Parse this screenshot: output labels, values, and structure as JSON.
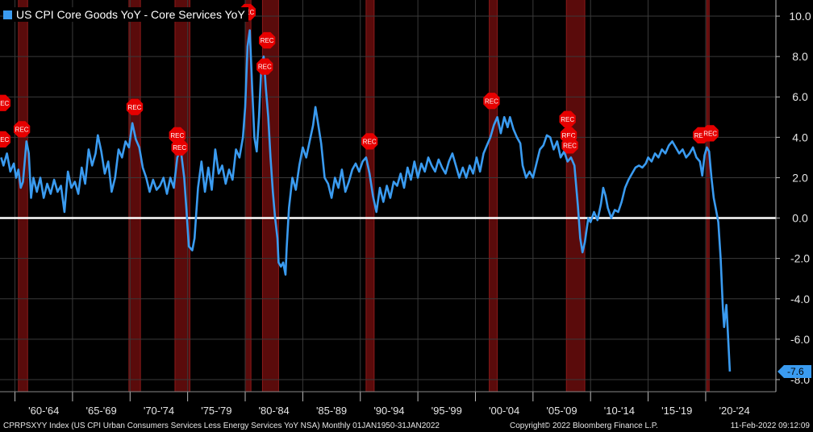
{
  "colors": {
    "background": "#000000",
    "series": "#3a9bf0",
    "recession_band": "#5a0b0b",
    "recession_edge": "#8c1a1a",
    "zero_line": "#ffffff",
    "rec_marker": "#e60000",
    "grid": "#3a3a3a"
  },
  "chart_data": {
    "type": "line",
    "title": "US CPI Core Goods YoY - Core Services YoY",
    "x_unit": "year",
    "xlim": [
      1958.7,
      2026.1
    ],
    "ylim": [
      -8.6,
      10.8
    ],
    "y_ticks": [
      10.0,
      8.0,
      6.0,
      4.0,
      2.0,
      0.0,
      -2.0,
      -4.0,
      -6.0,
      -8.0
    ],
    "y_tick_labels": [
      "10.0",
      "8.0",
      "6.0",
      "4.0",
      "2.0",
      "0.0",
      "-2.0",
      "-4.0",
      "-6.0",
      "-8.0"
    ],
    "x_tick_labels": [
      "'60-'64",
      "'65-'69",
      "'70-'74",
      "'75-'79",
      "'80-'84",
      "'85-'89",
      "'90-'94",
      "'95-'99",
      "'00-'04",
      "'05-'09",
      "'10-'14",
      "'15-'19",
      "'20-'24"
    ],
    "x_tick_ranges": [
      [
        1960,
        1965
      ],
      [
        1965,
        1970
      ],
      [
        1970,
        1975
      ],
      [
        1975,
        1980
      ],
      [
        1980,
        1985
      ],
      [
        1985,
        1990
      ],
      [
        1990,
        1995
      ],
      [
        1995,
        2000
      ],
      [
        2000,
        2005
      ],
      [
        2005,
        2010
      ],
      [
        2010,
        2015
      ],
      [
        2015,
        2020
      ],
      [
        2020,
        2025
      ]
    ],
    "zero_line": 0,
    "grid": true,
    "legend_position": "top-left",
    "last_value": -7.6,
    "last_value_label": "-7.6",
    "recessions": [
      [
        1960.3,
        1961.1
      ],
      [
        1969.9,
        1970.9
      ],
      [
        1973.9,
        1975.2
      ],
      [
        1980.0,
        1980.5
      ],
      [
        1981.5,
        1982.9
      ],
      [
        1990.5,
        1991.2
      ],
      [
        2001.2,
        2001.9
      ],
      [
        2007.9,
        2009.5
      ],
      [
        2020.1,
        2020.3
      ]
    ],
    "rec_markers": [
      {
        "label": "REC",
        "x": 1958.9,
        "y": 5.7
      },
      {
        "label": "REC",
        "x": 1958.9,
        "y": 3.9
      },
      {
        "label": "REC",
        "x": 1960.6,
        "y": 4.4
      },
      {
        "label": "REC",
        "x": 1970.4,
        "y": 5.5
      },
      {
        "label": "REC",
        "x": 1974.1,
        "y": 4.1
      },
      {
        "label": "REC",
        "x": 1974.3,
        "y": 3.5
      },
      {
        "label": "REC",
        "x": 1980.2,
        "y": 10.2
      },
      {
        "label": "REC",
        "x": 1981.9,
        "y": 8.8
      },
      {
        "label": "REC",
        "x": 1981.7,
        "y": 7.5
      },
      {
        "label": "REC",
        "x": 1990.8,
        "y": 3.8
      },
      {
        "label": "REC",
        "x": 2001.4,
        "y": 5.8
      },
      {
        "label": "REC",
        "x": 2008.0,
        "y": 4.9
      },
      {
        "label": "REC",
        "x": 2008.1,
        "y": 4.1
      },
      {
        "label": "REC",
        "x": 2008.2,
        "y": 3.6
      },
      {
        "label": "REC",
        "x": 2019.6,
        "y": 4.1
      },
      {
        "label": "REC",
        "x": 2020.4,
        "y": 4.2
      }
    ],
    "series": [
      {
        "values": [
          [
            1958.8,
            3.0
          ],
          [
            1959.0,
            2.6
          ],
          [
            1959.3,
            3.2
          ],
          [
            1959.6,
            2.3
          ],
          [
            1959.9,
            2.7
          ],
          [
            1960.1,
            2.0
          ],
          [
            1960.3,
            2.4
          ],
          [
            1960.5,
            1.5
          ],
          [
            1960.7,
            1.8
          ],
          [
            1961.0,
            3.8
          ],
          [
            1961.2,
            3.2
          ],
          [
            1961.4,
            1.0
          ],
          [
            1961.6,
            2.0
          ],
          [
            1961.9,
            1.3
          ],
          [
            1962.2,
            2.0
          ],
          [
            1962.5,
            1.0
          ],
          [
            1962.8,
            1.7
          ],
          [
            1963.1,
            1.2
          ],
          [
            1963.4,
            1.9
          ],
          [
            1963.7,
            1.3
          ],
          [
            1964.0,
            1.6
          ],
          [
            1964.3,
            0.3
          ],
          [
            1964.6,
            2.3
          ],
          [
            1964.9,
            1.5
          ],
          [
            1965.2,
            1.8
          ],
          [
            1965.5,
            1.2
          ],
          [
            1965.8,
            2.5
          ],
          [
            1966.1,
            1.7
          ],
          [
            1966.4,
            3.4
          ],
          [
            1966.7,
            2.6
          ],
          [
            1967.0,
            3.2
          ],
          [
            1967.2,
            4.1
          ],
          [
            1967.5,
            3.3
          ],
          [
            1967.8,
            2.2
          ],
          [
            1968.1,
            2.8
          ],
          [
            1968.4,
            1.3
          ],
          [
            1968.7,
            2.0
          ],
          [
            1969.0,
            3.4
          ],
          [
            1969.3,
            3.0
          ],
          [
            1969.6,
            3.8
          ],
          [
            1969.9,
            3.5
          ],
          [
            1970.2,
            4.7
          ],
          [
            1970.5,
            3.9
          ],
          [
            1970.8,
            3.5
          ],
          [
            1971.1,
            2.5
          ],
          [
            1971.4,
            2.0
          ],
          [
            1971.7,
            1.3
          ],
          [
            1972.0,
            1.9
          ],
          [
            1972.3,
            1.4
          ],
          [
            1972.6,
            1.6
          ],
          [
            1972.9,
            2.0
          ],
          [
            1973.2,
            1.2
          ],
          [
            1973.5,
            2.0
          ],
          [
            1973.8,
            1.5
          ],
          [
            1974.1,
            3.0
          ],
          [
            1974.4,
            3.4
          ],
          [
            1974.7,
            2.0
          ],
          [
            1974.9,
            0.4
          ],
          [
            1975.1,
            -1.4
          ],
          [
            1975.4,
            -1.6
          ],
          [
            1975.6,
            -1.0
          ],
          [
            1975.9,
            1.5
          ],
          [
            1976.2,
            2.8
          ],
          [
            1976.5,
            1.3
          ],
          [
            1976.8,
            2.5
          ],
          [
            1977.1,
            1.4
          ],
          [
            1977.4,
            3.4
          ],
          [
            1977.7,
            2.2
          ],
          [
            1978.0,
            2.6
          ],
          [
            1978.3,
            1.7
          ],
          [
            1978.6,
            2.4
          ],
          [
            1978.9,
            1.9
          ],
          [
            1979.2,
            3.4
          ],
          [
            1979.5,
            3.0
          ],
          [
            1979.8,
            4.0
          ],
          [
            1980.0,
            5.5
          ],
          [
            1980.2,
            8.5
          ],
          [
            1980.4,
            9.3
          ],
          [
            1980.6,
            6.5
          ],
          [
            1980.8,
            4.0
          ],
          [
            1981.0,
            3.3
          ],
          [
            1981.2,
            5.0
          ],
          [
            1981.4,
            7.5
          ],
          [
            1981.6,
            8.0
          ],
          [
            1981.8,
            6.4
          ],
          [
            1982.0,
            5.0
          ],
          [
            1982.2,
            3.0
          ],
          [
            1982.4,
            1.3
          ],
          [
            1982.6,
            0.0
          ],
          [
            1982.8,
            -1.0
          ],
          [
            1982.9,
            -2.2
          ],
          [
            1983.1,
            -2.4
          ],
          [
            1983.3,
            -2.2
          ],
          [
            1983.5,
            -2.8
          ],
          [
            1983.6,
            -1.5
          ],
          [
            1983.8,
            0.5
          ],
          [
            1984.1,
            2.0
          ],
          [
            1984.4,
            1.4
          ],
          [
            1984.7,
            2.6
          ],
          [
            1985.0,
            3.5
          ],
          [
            1985.3,
            3.0
          ],
          [
            1985.6,
            3.8
          ],
          [
            1985.9,
            4.6
          ],
          [
            1986.1,
            5.5
          ],
          [
            1986.3,
            4.8
          ],
          [
            1986.6,
            3.7
          ],
          [
            1986.9,
            2.0
          ],
          [
            1987.2,
            1.7
          ],
          [
            1987.5,
            1.0
          ],
          [
            1987.8,
            2.0
          ],
          [
            1988.1,
            1.5
          ],
          [
            1988.4,
            2.4
          ],
          [
            1988.7,
            1.3
          ],
          [
            1989.0,
            1.8
          ],
          [
            1989.3,
            2.4
          ],
          [
            1989.6,
            2.7
          ],
          [
            1989.9,
            2.3
          ],
          [
            1990.2,
            2.8
          ],
          [
            1990.5,
            3.0
          ],
          [
            1990.8,
            2.2
          ],
          [
            1991.1,
            1.1
          ],
          [
            1991.4,
            0.3
          ],
          [
            1991.7,
            1.5
          ],
          [
            1992.0,
            0.8
          ],
          [
            1992.3,
            1.6
          ],
          [
            1992.6,
            1.0
          ],
          [
            1992.9,
            1.8
          ],
          [
            1993.2,
            1.6
          ],
          [
            1993.5,
            2.2
          ],
          [
            1993.8,
            1.5
          ],
          [
            1994.1,
            2.5
          ],
          [
            1994.4,
            1.9
          ],
          [
            1994.7,
            2.8
          ],
          [
            1995.0,
            2.0
          ],
          [
            1995.3,
            2.7
          ],
          [
            1995.6,
            2.3
          ],
          [
            1995.9,
            3.0
          ],
          [
            1996.2,
            2.6
          ],
          [
            1996.5,
            2.3
          ],
          [
            1996.8,
            2.9
          ],
          [
            1997.1,
            2.5
          ],
          [
            1997.4,
            2.2
          ],
          [
            1997.7,
            2.8
          ],
          [
            1998.0,
            3.2
          ],
          [
            1998.3,
            2.6
          ],
          [
            1998.6,
            2.0
          ],
          [
            1998.9,
            2.5
          ],
          [
            1999.2,
            2.0
          ],
          [
            1999.5,
            2.6
          ],
          [
            1999.8,
            2.2
          ],
          [
            2000.1,
            3.0
          ],
          [
            2000.4,
            2.3
          ],
          [
            2000.7,
            3.2
          ],
          [
            2001.0,
            3.6
          ],
          [
            2001.3,
            4.0
          ],
          [
            2001.6,
            4.6
          ],
          [
            2001.9,
            5.0
          ],
          [
            2002.2,
            4.2
          ],
          [
            2002.5,
            5.0
          ],
          [
            2002.8,
            4.5
          ],
          [
            2003.0,
            5.0
          ],
          [
            2003.3,
            4.4
          ],
          [
            2003.6,
            4.0
          ],
          [
            2003.9,
            3.7
          ],
          [
            2004.1,
            2.6
          ],
          [
            2004.4,
            2.0
          ],
          [
            2004.7,
            2.3
          ],
          [
            2005.0,
            2.0
          ],
          [
            2005.3,
            2.7
          ],
          [
            2005.6,
            3.4
          ],
          [
            2005.9,
            3.6
          ],
          [
            2006.2,
            4.1
          ],
          [
            2006.5,
            4.0
          ],
          [
            2006.8,
            3.4
          ],
          [
            2007.1,
            3.8
          ],
          [
            2007.4,
            3.0
          ],
          [
            2007.7,
            3.3
          ],
          [
            2008.0,
            2.8
          ],
          [
            2008.3,
            3.0
          ],
          [
            2008.6,
            2.6
          ],
          [
            2008.9,
            0.6
          ],
          [
            2009.1,
            -1.0
          ],
          [
            2009.3,
            -1.7
          ],
          [
            2009.5,
            -1.2
          ],
          [
            2009.8,
            0.0
          ],
          [
            2010.0,
            -0.2
          ],
          [
            2010.3,
            0.3
          ],
          [
            2010.6,
            -0.1
          ],
          [
            2010.9,
            0.7
          ],
          [
            2011.1,
            1.5
          ],
          [
            2011.3,
            1.1
          ],
          [
            2011.5,
            0.5
          ],
          [
            2011.8,
            0.0
          ],
          [
            2012.1,
            0.4
          ],
          [
            2012.4,
            0.3
          ],
          [
            2012.7,
            0.8
          ],
          [
            2013.0,
            1.5
          ],
          [
            2013.3,
            1.9
          ],
          [
            2013.6,
            2.2
          ],
          [
            2013.9,
            2.5
          ],
          [
            2014.2,
            2.6
          ],
          [
            2014.5,
            2.5
          ],
          [
            2014.8,
            2.7
          ],
          [
            2015.0,
            3.0
          ],
          [
            2015.3,
            2.8
          ],
          [
            2015.6,
            3.2
          ],
          [
            2015.9,
            3.0
          ],
          [
            2016.2,
            3.4
          ],
          [
            2016.5,
            3.2
          ],
          [
            2016.8,
            3.6
          ],
          [
            2017.1,
            3.8
          ],
          [
            2017.4,
            3.5
          ],
          [
            2017.7,
            3.2
          ],
          [
            2018.0,
            3.4
          ],
          [
            2018.3,
            3.0
          ],
          [
            2018.6,
            3.2
          ],
          [
            2018.9,
            3.5
          ],
          [
            2019.2,
            3.0
          ],
          [
            2019.5,
            2.8
          ],
          [
            2019.7,
            2.1
          ],
          [
            2019.9,
            3.1
          ],
          [
            2020.1,
            3.5
          ],
          [
            2020.3,
            3.3
          ],
          [
            2020.5,
            2.0
          ],
          [
            2020.7,
            1.0
          ],
          [
            2020.9,
            0.4
          ],
          [
            2021.1,
            -0.2
          ],
          [
            2021.3,
            -2.0
          ],
          [
            2021.5,
            -4.5
          ],
          [
            2021.6,
            -5.4
          ],
          [
            2021.7,
            -4.8
          ],
          [
            2021.8,
            -4.3
          ],
          [
            2021.9,
            -5.4
          ],
          [
            2022.0,
            -6.5
          ],
          [
            2022.1,
            -7.6
          ]
        ]
      }
    ]
  },
  "footer": {
    "left": "CPRPSXYY Index (US CPI Urban Consumers Services Less Energy Services YoY NSA)  Monthly 01JAN1950-31JAN2022",
    "center": "Copyright© 2022 Bloomberg Finance L.P.",
    "right": "11-Feb-2022 09:12:09"
  }
}
